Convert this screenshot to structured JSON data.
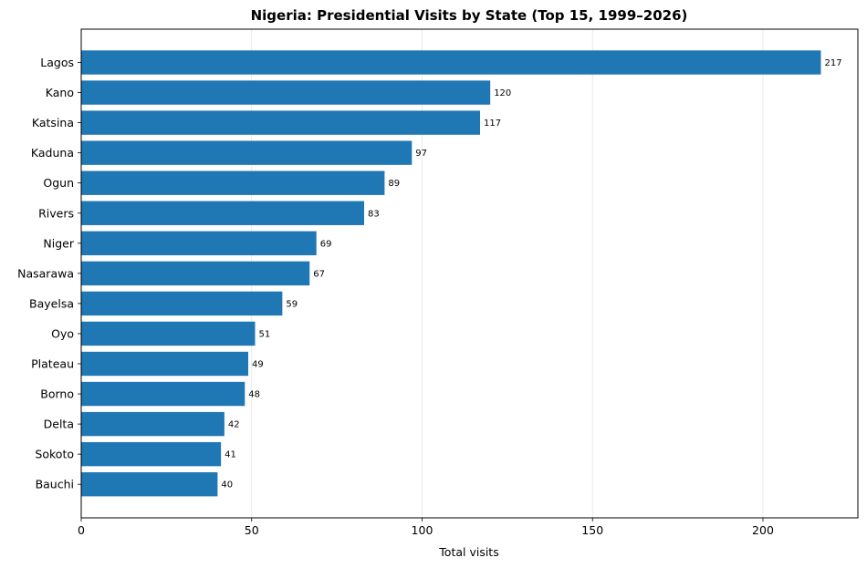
{
  "chart_data": {
    "type": "bar",
    "orientation": "horizontal",
    "title": "Nigeria: Presidential Visits by State (Top 15, 1999–2026)",
    "xlabel": "Total visits",
    "ylabel": "",
    "categories": [
      "Lagos",
      "Kano",
      "Katsina",
      "Kaduna",
      "Ogun",
      "Rivers",
      "Niger",
      "Nasarawa",
      "Bayelsa",
      "Oyo",
      "Plateau",
      "Borno",
      "Delta",
      "Sokoto",
      "Bauchi"
    ],
    "values": [
      217,
      120,
      117,
      97,
      89,
      83,
      69,
      67,
      59,
      51,
      49,
      48,
      42,
      41,
      40
    ],
    "xlim": [
      0,
      227.85
    ],
    "xticks": [
      0,
      50,
      100,
      150,
      200
    ],
    "grid": "x",
    "bar_color": "#1f77b4"
  }
}
